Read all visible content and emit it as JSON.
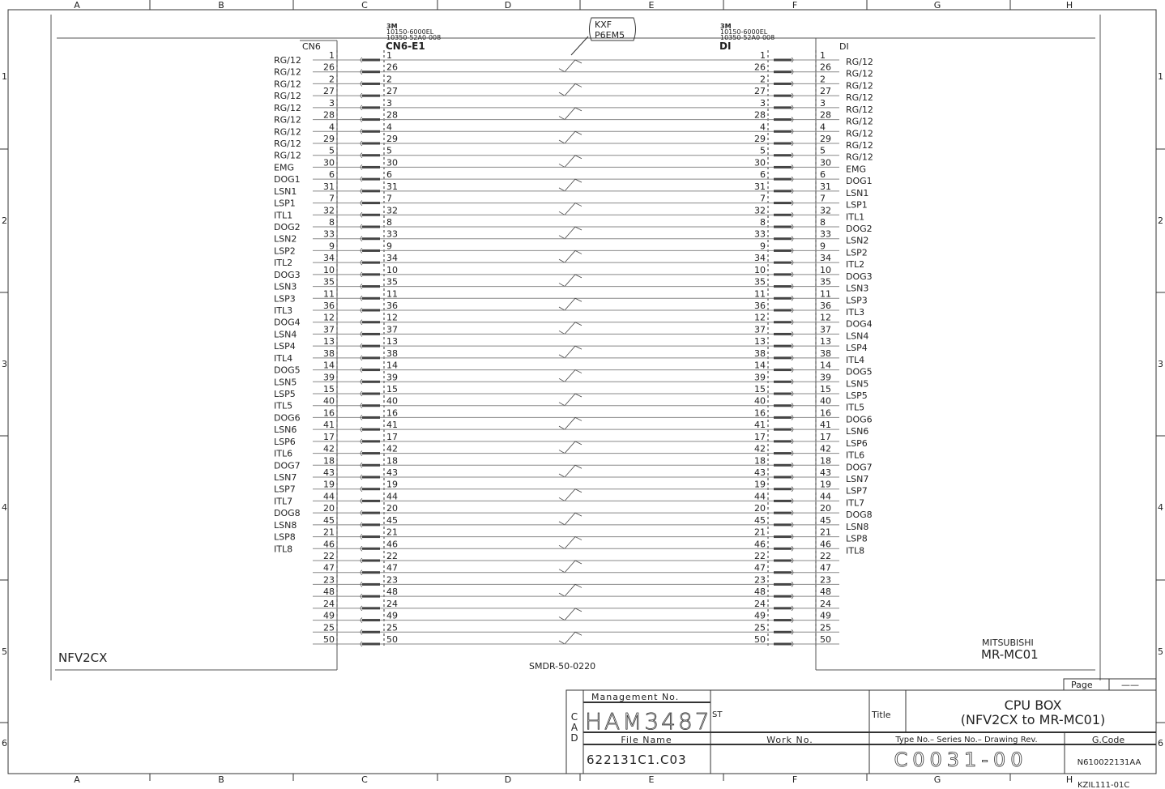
{
  "frame": {
    "columns": [
      "A",
      "B",
      "C",
      "D",
      "E",
      "F",
      "G",
      "H"
    ],
    "rows": [
      "1",
      "2",
      "3",
      "4",
      "5",
      "6"
    ]
  },
  "left_device": {
    "name": "NFV2CX",
    "connector": "CN6"
  },
  "right_device": {
    "maker": "MITSUBISHI",
    "model": "MR-MC01",
    "connector": "DI"
  },
  "left_plug": {
    "maker": "3M",
    "part1": "10150-6000EL",
    "part2": "10350-52A0-008",
    "name": "CN6-E1"
  },
  "right_plug": {
    "maker": "3M",
    "part1": "10150-6000EL",
    "part2": "10350-52A0-008",
    "name": "DI"
  },
  "cable_tag": {
    "line1": "KXF",
    "line2": "P6EM5"
  },
  "cable_part": "SMDR-50-0220",
  "pins": [
    "1",
    "26",
    "2",
    "27",
    "3",
    "28",
    "4",
    "29",
    "5",
    "30",
    "6",
    "31",
    "7",
    "32",
    "8",
    "33",
    "9",
    "34",
    "10",
    "35",
    "11",
    "36",
    "12",
    "37",
    "13",
    "38",
    "14",
    "39",
    "15",
    "40",
    "16",
    "41",
    "17",
    "42",
    "18",
    "43",
    "19",
    "44",
    "20",
    "45",
    "21",
    "46",
    "22",
    "47",
    "23",
    "48",
    "24",
    "49",
    "25",
    "50"
  ],
  "signals": [
    "RG/12",
    "RG/12",
    "RG/12",
    "RG/12",
    "RG/12",
    "RG/12",
    "RG/12",
    "RG/12",
    "RG/12",
    "EMG",
    "DOG1",
    "LSN1",
    "LSP1",
    "ITL1",
    "DOG2",
    "LSN2",
    "LSP2",
    "ITL2",
    "DOG3",
    "LSN3",
    "LSP3",
    "ITL3",
    "DOG4",
    "LSN4",
    "LSP4",
    "ITL4",
    "DOG5",
    "LSN5",
    "LSP5",
    "ITL5",
    "DOG6",
    "LSN6",
    "LSP6",
    "ITL6",
    "DOG7",
    "LSN7",
    "LSP7",
    "ITL7",
    "DOG8",
    "LSN8",
    "LSP8",
    "ITL8"
  ],
  "title_block": {
    "page_label": "Page",
    "page_value": "——",
    "cad": "CAD",
    "management_label": "Management No.",
    "management_no": "HAM3487",
    "st_label": "ST",
    "title_label": "Title",
    "title_line1": "CPU BOX",
    "title_line2": "(NFV2CX to MR-MC01)",
    "file_name_label": "File Name",
    "file_name": "622131C1.C03",
    "work_no_label": "Work No.",
    "type_label": "Type No.– Series No.– Drawing Rev.",
    "type_no": "C0031-00",
    "gcode_label": "G.Code",
    "gcode": "N610022131AA",
    "form_no": "KZIL111-01C"
  },
  "colors": {
    "line": "#333333",
    "wire": "#888888"
  }
}
